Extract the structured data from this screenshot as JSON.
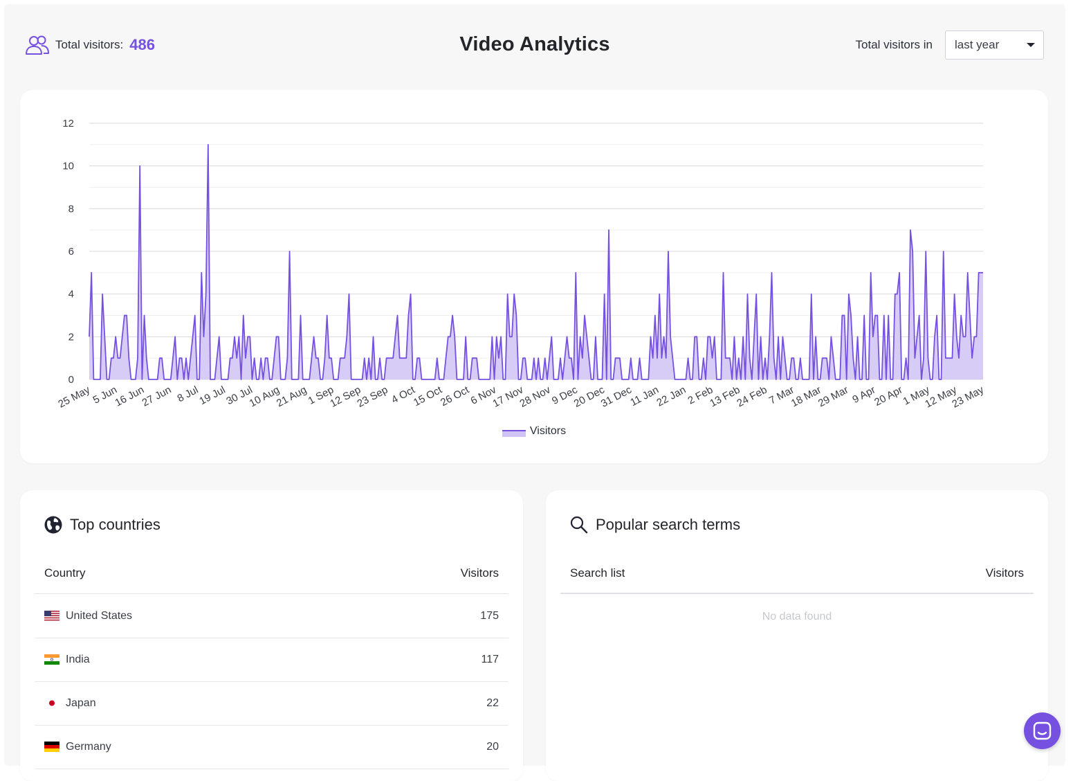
{
  "header": {
    "total_visitors_label": "Total visitors:",
    "total_visitors_value": "486",
    "title": "Video Analytics",
    "range_label": "Total visitors in",
    "range_selected": "last year"
  },
  "colors": {
    "accent": "#7650e0",
    "area_fill": "#d6ccf6",
    "background": "#f7f7f7"
  },
  "chart_data": {
    "type": "area",
    "legend": "Visitors",
    "legend_position": "bottom",
    "grid": true,
    "ylim": [
      0,
      12
    ],
    "y_ticks": [
      0,
      2,
      4,
      6,
      8,
      10,
      12
    ],
    "x_range": [
      "2023-05-25",
      "2024-05-31"
    ],
    "x_tick_labels": [
      "25 May",
      "5 Jun",
      "16 Jun",
      "27 Jun",
      "8 Jul",
      "19 Jul",
      "30 Jul",
      "10 Aug",
      "21 Aug",
      "1 Sep",
      "12 Sep",
      "23 Sep",
      "4 Oct",
      "15 Oct",
      "26 Oct",
      "6 Nov",
      "17 Nov",
      "28 Nov",
      "9 Dec",
      "20 Dec",
      "31 Dec",
      "11 Jan",
      "22 Jan",
      "2 Feb",
      "13 Feb",
      "24 Feb",
      "7 Mar",
      "18 Mar",
      "29 Mar",
      "9 Apr",
      "20 Apr",
      "1 May",
      "12 May",
      "23 May"
    ],
    "series": [
      {
        "name": "Visitors",
        "values": [
          2,
          5,
          0,
          0,
          0,
          0,
          4,
          2,
          0,
          0,
          1,
          1,
          2,
          1,
          1,
          2,
          3,
          3,
          1,
          0,
          0,
          0,
          1,
          10,
          0,
          3,
          1,
          0,
          0,
          0,
          0,
          0,
          1,
          1,
          0,
          0,
          0,
          0,
          1,
          2,
          0,
          1,
          1,
          0,
          1,
          0,
          1,
          2,
          3,
          0,
          0,
          5,
          2,
          4,
          11,
          0,
          0,
          0,
          1,
          2,
          0,
          0,
          0,
          0,
          1,
          1,
          2,
          1,
          2,
          0,
          3,
          1,
          2,
          2,
          0,
          1,
          0,
          0,
          1,
          0,
          1,
          1,
          0,
          0,
          1,
          2,
          2,
          0,
          0,
          0,
          1,
          6,
          0,
          0,
          0,
          0,
          3,
          0,
          0,
          0,
          0,
          1,
          2,
          1,
          1,
          0,
          0,
          1,
          3,
          1,
          1,
          0,
          0,
          0,
          1,
          1,
          1,
          2,
          4,
          0,
          0,
          0,
          0,
          0,
          0,
          1,
          0,
          1,
          0,
          2,
          0,
          0,
          1,
          0,
          0,
          1,
          1,
          1,
          1,
          2,
          3,
          1,
          1,
          1,
          1,
          3,
          4,
          0,
          0,
          1,
          1,
          0,
          0,
          0,
          0,
          0,
          0,
          0,
          1,
          0,
          0,
          0,
          1,
          2,
          2,
          3,
          2,
          0,
          0,
          0,
          0,
          2,
          0,
          0,
          1,
          1,
          1,
          0,
          0,
          0,
          0,
          0,
          0,
          2,
          0,
          2,
          1,
          2,
          0,
          0,
          4,
          2,
          2,
          4,
          3,
          0,
          0,
          1,
          1,
          0,
          0,
          0,
          1,
          0,
          1,
          0,
          0,
          1,
          0,
          1,
          2,
          0,
          0,
          0,
          1,
          0,
          1,
          2,
          1,
          1,
          0,
          5,
          0,
          2,
          1,
          3,
          2,
          1,
          0,
          0,
          2,
          0,
          0,
          0,
          4,
          0,
          7,
          0,
          0,
          1,
          1,
          1,
          0,
          0,
          0,
          0,
          1,
          0,
          0,
          0,
          1,
          0,
          0,
          0,
          0,
          2,
          1,
          3,
          1,
          4,
          1,
          2,
          1,
          6,
          2,
          1,
          0,
          0,
          0,
          0,
          0,
          0,
          1,
          0,
          0,
          2,
          2,
          0,
          0,
          1,
          0,
          2,
          2,
          1,
          2,
          0,
          0,
          0,
          5,
          1,
          1,
          1,
          0,
          2,
          0,
          1,
          0,
          2,
          0,
          4,
          1,
          0,
          2,
          4,
          0,
          2,
          0,
          1,
          0,
          2,
          5,
          1,
          0,
          2,
          0,
          2,
          1,
          0,
          0,
          1,
          1,
          0,
          0,
          1,
          0,
          0,
          0,
          0,
          4,
          0,
          2,
          0,
          0,
          1,
          1,
          1,
          0,
          2,
          1,
          0,
          0,
          0,
          3,
          3,
          0,
          4,
          3,
          1,
          0,
          2,
          0,
          0,
          3,
          0,
          0,
          5,
          2,
          3,
          3,
          0,
          0,
          3,
          0,
          3,
          0,
          0,
          4,
          4,
          5,
          0,
          0,
          1,
          0,
          7,
          6,
          1,
          2,
          3,
          0,
          1,
          6,
          1,
          0,
          0,
          2,
          3,
          0,
          0,
          6,
          1,
          1,
          1,
          1,
          4,
          2,
          1,
          3,
          2,
          2,
          5,
          3,
          1,
          2,
          2,
          5,
          5,
          5
        ]
      }
    ]
  },
  "countries": {
    "title": "Top countries",
    "col_country": "Country",
    "col_visitors": "Visitors",
    "rows": [
      {
        "name": "United States",
        "visitors": "175",
        "flag": "us"
      },
      {
        "name": "India",
        "visitors": "117",
        "flag": "in"
      },
      {
        "name": "Japan",
        "visitors": "22",
        "flag": "jp"
      },
      {
        "name": "Germany",
        "visitors": "20",
        "flag": "de"
      }
    ]
  },
  "search_terms": {
    "title": "Popular search terms",
    "col_search": "Search list",
    "col_visitors": "Visitors",
    "empty_text": "No data found"
  },
  "icons": {
    "visitors": "people-icon",
    "countries": "globe-icon",
    "search": "search-icon",
    "chat": "chat-icon"
  }
}
